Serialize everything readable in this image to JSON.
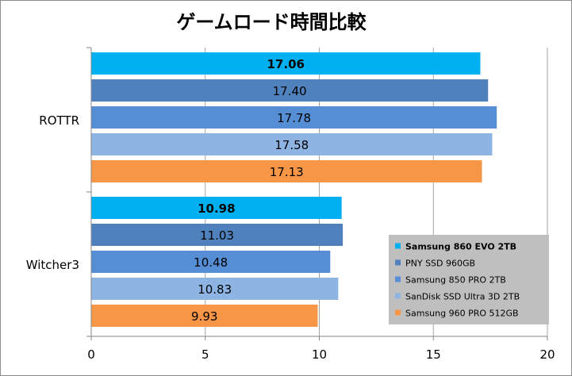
{
  "chart_data": {
    "type": "bar",
    "orientation": "horizontal",
    "title": "ゲームロード時間比較",
    "categories": [
      "ROTTR",
      "Witcher3"
    ],
    "series": [
      {
        "name": "Samsung 860 EVO 2TB",
        "color": "#00b0f0",
        "label_bold": true,
        "values": [
          17.06,
          10.98
        ],
        "labels": [
          "17.06",
          "10.98"
        ]
      },
      {
        "name": "PNY SSD 960GB",
        "color": "#4f81bd",
        "label_bold": false,
        "values": [
          17.4,
          11.03
        ],
        "labels": [
          "17.40",
          "11.03"
        ]
      },
      {
        "name": "Samsung 850 PRO 2TB",
        "color": "#558ed5",
        "label_bold": false,
        "values": [
          17.78,
          10.48
        ],
        "labels": [
          "17.78",
          "10.48"
        ]
      },
      {
        "name": "SanDisk SSD Ultra 3D 2TB",
        "color": "#8db4e2",
        "label_bold": false,
        "values": [
          17.58,
          10.83
        ],
        "labels": [
          "17.58",
          "10.83"
        ]
      },
      {
        "name": "Samsung 960 PRO 512GB",
        "color": "#f79646",
        "label_bold": false,
        "values": [
          17.13,
          9.93
        ],
        "labels": [
          "17.13",
          "9.93"
        ]
      }
    ],
    "xlim": [
      0,
      20
    ],
    "xticks": [
      "0",
      "5",
      "10",
      "15",
      "20"
    ],
    "xlabel": "",
    "ylabel": "",
    "grid": "vertical",
    "legend_position": "bottom-right",
    "legend_background": "#bfbfbf"
  }
}
